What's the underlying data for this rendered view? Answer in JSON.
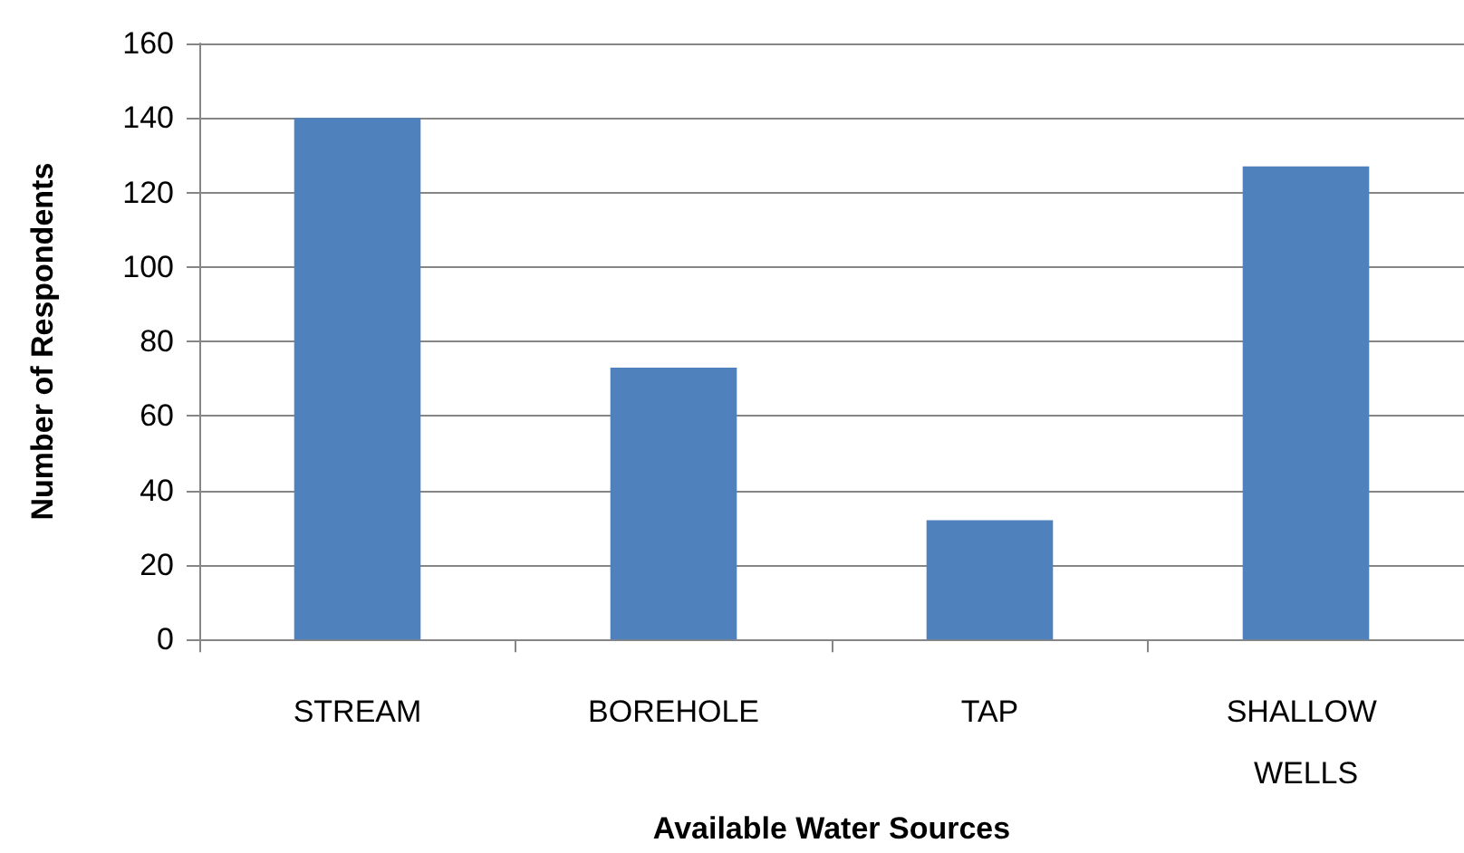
{
  "chart_data": {
    "type": "bar",
    "xlabel": "Available Water Sources",
    "ylabel": "Number of Respondents",
    "categories": [
      "STREAM",
      "BOREHOLE",
      "TAP",
      "SHALLOW WELLS"
    ],
    "values": [
      140,
      73,
      32,
      127
    ],
    "color": "#4f81bd",
    "ylim": [
      0,
      160
    ],
    "yticks": [
      0,
      20,
      40,
      60,
      80,
      100,
      120,
      140,
      160
    ],
    "grid": "y"
  }
}
